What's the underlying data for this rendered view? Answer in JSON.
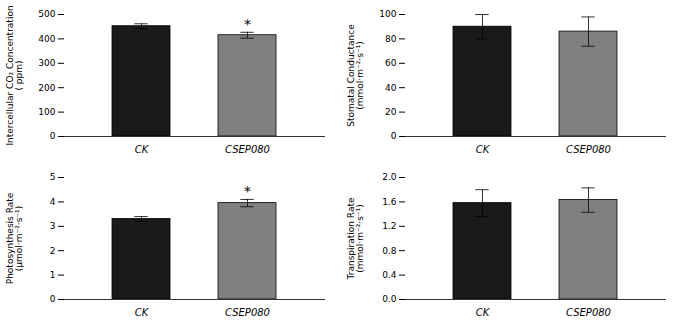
{
  "chart_data": [
    {
      "type": "bar",
      "ylabel": "Intercellular CO₂ Concentration\n( ppm)",
      "categories": [
        "CK",
        "CSEP080"
      ],
      "values": [
        452,
        415
      ],
      "errors": [
        10,
        12
      ],
      "colors": [
        "#1a1a1a",
        "#808080"
      ],
      "ylim": [
        0,
        500
      ],
      "yticks": [
        0,
        100,
        200,
        300,
        400,
        500
      ],
      "annotations": [
        {
          "category": "CSEP080",
          "text": "*"
        }
      ]
    },
    {
      "type": "bar",
      "ylabel": "Stomatal Conductance\n(mmol·m⁻²·s⁻¹)",
      "categories": [
        "CK",
        "CSEP080"
      ],
      "values": [
        90,
        86
      ],
      "errors": [
        10,
        12
      ],
      "colors": [
        "#1a1a1a",
        "#808080"
      ],
      "ylim": [
        0,
        100
      ],
      "yticks": [
        0,
        20,
        40,
        60,
        80,
        100
      ]
    },
    {
      "type": "bar",
      "ylabel": "Photosynthesis Rate\n(μmol·m⁻²·s⁻¹)",
      "categories": [
        "CK",
        "CSEP080"
      ],
      "values": [
        3.3,
        3.95
      ],
      "errors": [
        0.1,
        0.15
      ],
      "colors": [
        "#1a1a1a",
        "#808080"
      ],
      "ylim": [
        0,
        5
      ],
      "yticks": [
        0,
        1,
        2,
        3,
        4,
        5
      ],
      "annotations": [
        {
          "category": "CSEP080",
          "text": "*"
        }
      ]
    },
    {
      "type": "bar",
      "ylabel": "Transpiration Rate\n(mmol·m⁻²·s⁻¹)",
      "categories": [
        "CK",
        "CSEP080"
      ],
      "values": [
        1.58,
        1.63
      ],
      "errors": [
        0.22,
        0.2
      ],
      "colors": [
        "#1a1a1a",
        "#808080"
      ],
      "ylim": [
        0,
        2
      ],
      "yticks": [
        {
          "value": 0,
          "label": "0.0"
        },
        0.4,
        0.8,
        1.2,
        1.6,
        {
          "value": 2,
          "label": "2.0"
        }
      ]
    }
  ]
}
